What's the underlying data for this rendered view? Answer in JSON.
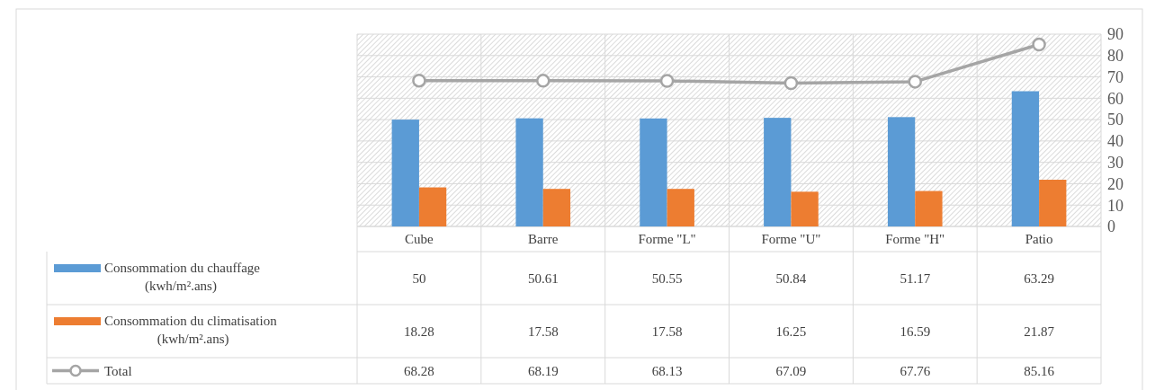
{
  "chart_data": {
    "type": "bar",
    "categories": [
      "Cube",
      "Barre",
      "Forme \"L\"",
      "Forme \"U\"",
      "Forme \"H\"",
      "Patio"
    ],
    "series": [
      {
        "name": "Consommation du chauffage (kwh/m².ans)",
        "color": "#5b9bd5",
        "values": [
          50,
          50.61,
          50.55,
          50.84,
          51.17,
          63.29
        ]
      },
      {
        "name": "Consommation du climatisation (kwh/m².ans)",
        "color": "#ed7d31",
        "values": [
          18.28,
          17.58,
          17.58,
          16.25,
          16.59,
          21.87
        ]
      },
      {
        "name": "Total",
        "type": "line",
        "color": "#a5a5a5",
        "marker": "circle",
        "values": [
          68.28,
          68.19,
          68.13,
          67.09,
          67.76,
          85.16
        ]
      }
    ],
    "ylim": [
      0,
      90
    ],
    "yticks": [
      0,
      10,
      20,
      30,
      40,
      50,
      60,
      70,
      80,
      90
    ],
    "grid": "y",
    "data_labels": true,
    "legend": "bottom"
  }
}
